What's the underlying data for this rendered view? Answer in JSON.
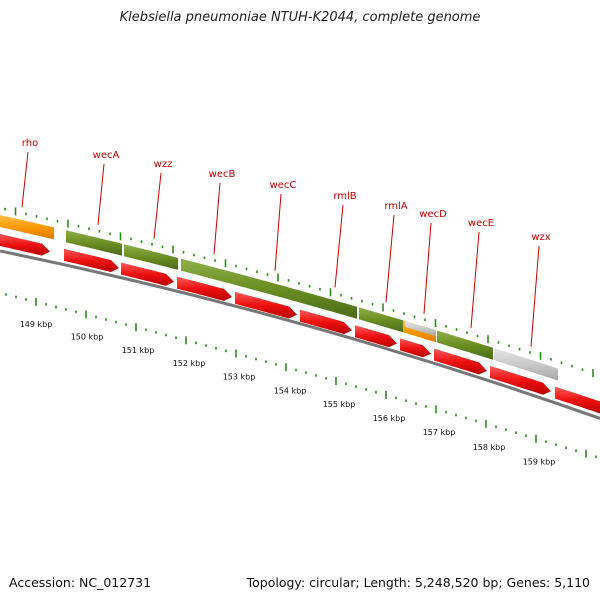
{
  "title": "Klebsiella pneumoniae NTUH-K2044, complete genome",
  "footer": {
    "accession": "Accession: NC_012731",
    "stats": "Topology: circular; Length: 5,248,520 bp; Genes: 5,110"
  },
  "colors": {
    "label": "#cc0000",
    "cds": "#ee1111",
    "olive": "#6b8e23",
    "orange": "#ff9900",
    "grey": "#c8c8c8",
    "ticks": "#2e8b22"
  },
  "gene_labels": [
    "rho",
    "wecA",
    "wzz",
    "wecB",
    "wecC",
    "rmlB",
    "rmlA",
    "wecD",
    "wecE",
    "wzx"
  ],
  "scale_labels": [
    "149 kbp",
    "150 kbp",
    "151 kbp",
    "152 kbp",
    "153 kbp",
    "154 kbp",
    "155 kbp",
    "156 kbp",
    "157 kbp",
    "158 kbp",
    "159 kbp"
  ]
}
